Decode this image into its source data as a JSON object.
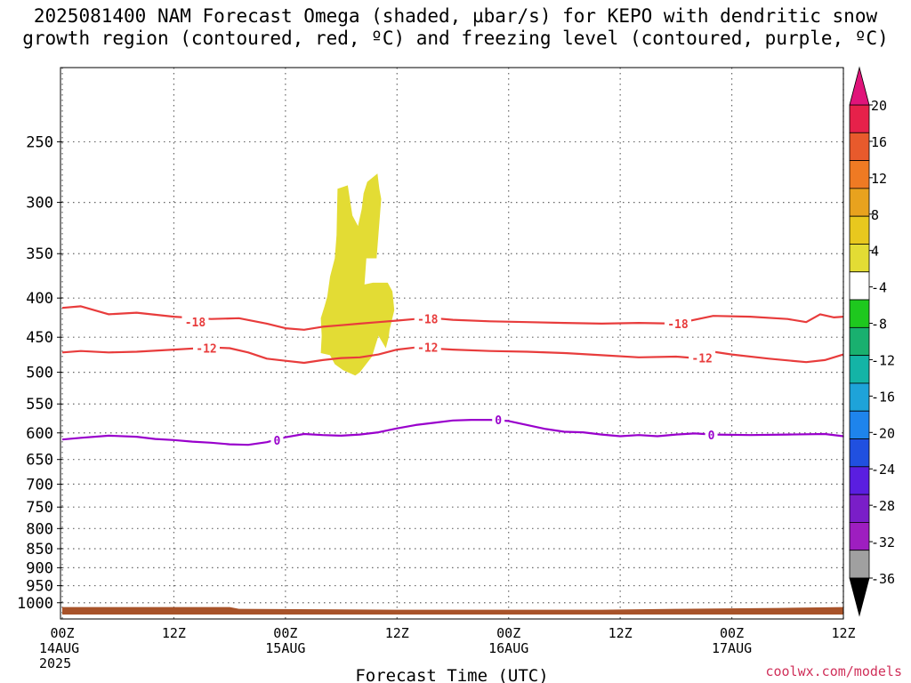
{
  "header": {
    "title_line1": "2025081400 NAM Forecast Omega (shaded, µbar/s) for KEPO with dendritic snow",
    "title_line2": "growth region (contoured, red, ºC) and freezing level (contoured, purple, ºC)"
  },
  "footer": {
    "credit": "coolwx.com/models"
  },
  "chart_data": {
    "type": "contour",
    "xlabel": "Forecast Time (UTC)",
    "ylabel": "",
    "x_unit": "forecast hour from 2025-08-14 00Z",
    "xlim": [
      0,
      84
    ],
    "ylim_hpa": [
      1050,
      200
    ],
    "y_scale": "log-pressure",
    "grid": true,
    "x_ticks": [
      {
        "hour": 0,
        "lines": [
          "00Z",
          "14AUG",
          "2025"
        ]
      },
      {
        "hour": 12,
        "lines": [
          "12Z"
        ]
      },
      {
        "hour": 24,
        "lines": [
          "00Z",
          "15AUG"
        ]
      },
      {
        "hour": 36,
        "lines": [
          "12Z"
        ]
      },
      {
        "hour": 48,
        "lines": [
          "00Z",
          "16AUG"
        ]
      },
      {
        "hour": 60,
        "lines": [
          "12Z"
        ]
      },
      {
        "hour": 72,
        "lines": [
          "00Z",
          "17AUG"
        ]
      },
      {
        "hour": 84,
        "lines": [
          "12Z"
        ]
      }
    ],
    "y_ticks": [
      "250",
      "300",
      "350",
      "400",
      "450",
      "500",
      "550",
      "600",
      "650",
      "700",
      "750",
      "800",
      "850",
      "900",
      "950",
      "1000"
    ],
    "contours": [
      {
        "label": "-18",
        "color": "#e83c3c",
        "label_positions": [
          [
            14.3,
            430
          ],
          [
            39.3,
            426
          ],
          [
            66.2,
            432
          ]
        ],
        "points": [
          [
            0,
            412
          ],
          [
            2,
            410
          ],
          [
            5,
            420
          ],
          [
            8,
            418
          ],
          [
            12,
            423
          ],
          [
            16,
            426
          ],
          [
            19,
            425
          ],
          [
            22,
            432
          ],
          [
            24,
            438
          ],
          [
            26,
            440
          ],
          [
            28,
            436
          ],
          [
            30,
            434
          ],
          [
            32,
            432
          ],
          [
            34,
            430
          ],
          [
            36,
            428
          ],
          [
            38,
            426
          ],
          [
            40,
            425
          ],
          [
            42,
            427
          ],
          [
            46,
            429
          ],
          [
            50,
            430
          ],
          [
            54,
            431
          ],
          [
            58,
            432
          ],
          [
            62,
            431
          ],
          [
            66,
            432
          ],
          [
            70,
            422
          ],
          [
            74,
            423
          ],
          [
            78,
            426
          ],
          [
            80,
            430
          ],
          [
            81.5,
            420
          ],
          [
            83,
            424
          ],
          [
            84,
            423
          ]
        ]
      },
      {
        "label": "-12",
        "color": "#e83c3c",
        "label_positions": [
          [
            15.5,
            465
          ],
          [
            39.3,
            464
          ],
          [
            68.8,
            479
          ]
        ],
        "points": [
          [
            0,
            471
          ],
          [
            2,
            469
          ],
          [
            5,
            471
          ],
          [
            8,
            470
          ],
          [
            12,
            467
          ],
          [
            16,
            464
          ],
          [
            18,
            465
          ],
          [
            20,
            471
          ],
          [
            22,
            480
          ],
          [
            24,
            483
          ],
          [
            26,
            486
          ],
          [
            28,
            482
          ],
          [
            30,
            479
          ],
          [
            32,
            478
          ],
          [
            34,
            474
          ],
          [
            36,
            467
          ],
          [
            38,
            464
          ],
          [
            42,
            467
          ],
          [
            46,
            469
          ],
          [
            50,
            470
          ],
          [
            54,
            472
          ],
          [
            58,
            475
          ],
          [
            62,
            478
          ],
          [
            66,
            477
          ],
          [
            68,
            479
          ],
          [
            70,
            470
          ],
          [
            72,
            474
          ],
          [
            76,
            480
          ],
          [
            80,
            485
          ],
          [
            82,
            482
          ],
          [
            84,
            474
          ]
        ]
      },
      {
        "label": "0",
        "color": "#9900cc",
        "label_positions": [
          [
            23.1,
            613
          ],
          [
            46.9,
            577
          ],
          [
            69.8,
            604
          ]
        ],
        "points": [
          [
            0,
            612
          ],
          [
            2,
            609
          ],
          [
            5,
            605
          ],
          [
            8,
            607
          ],
          [
            10,
            611
          ],
          [
            12,
            613
          ],
          [
            14,
            616
          ],
          [
            16,
            618
          ],
          [
            18,
            621
          ],
          [
            20,
            622
          ],
          [
            22,
            617
          ],
          [
            24,
            608
          ],
          [
            26,
            602
          ],
          [
            28,
            604
          ],
          [
            30,
            605
          ],
          [
            32,
            603
          ],
          [
            34,
            599
          ],
          [
            36,
            592
          ],
          [
            38,
            586
          ],
          [
            40,
            582
          ],
          [
            42,
            578
          ],
          [
            44,
            577
          ],
          [
            46,
            577
          ],
          [
            48,
            579
          ],
          [
            50,
            586
          ],
          [
            52,
            593
          ],
          [
            54,
            598
          ],
          [
            56,
            599
          ],
          [
            58,
            603
          ],
          [
            60,
            606
          ],
          [
            62,
            604
          ],
          [
            64,
            606
          ],
          [
            66,
            603
          ],
          [
            68,
            601
          ],
          [
            70,
            603
          ],
          [
            74,
            604
          ],
          [
            78,
            603
          ],
          [
            82,
            602
          ],
          [
            84,
            606
          ]
        ]
      }
    ],
    "shaded_regions": [
      {
        "color": "#e3dc34",
        "min_value": 4,
        "max_value": 8,
        "points": [
          [
            29.6,
            288
          ],
          [
            30.7,
            285
          ],
          [
            31.2,
            312
          ],
          [
            31.8,
            322
          ],
          [
            32.2,
            306
          ],
          [
            32.4,
            292
          ],
          [
            32.8,
            282
          ],
          [
            33.9,
            275
          ],
          [
            34.1,
            288
          ],
          [
            34.3,
            297
          ],
          [
            33.8,
            355
          ],
          [
            32.7,
            355
          ],
          [
            32.5,
            384
          ],
          [
            33.4,
            382
          ],
          [
            35.0,
            382
          ],
          [
            35.5,
            392
          ],
          [
            35.7,
            415
          ],
          [
            35.2,
            440
          ],
          [
            35.1,
            450
          ],
          [
            34.8,
            465
          ],
          [
            34.0,
            448
          ],
          [
            33.3,
            477
          ],
          [
            32.0,
            500
          ],
          [
            31.5,
            505
          ],
          [
            30.2,
            497
          ],
          [
            29.3,
            488
          ],
          [
            28.8,
            475
          ],
          [
            27.8,
            472
          ],
          [
            27.9,
            448
          ],
          [
            27.8,
            425
          ],
          [
            28.2,
            410
          ],
          [
            28.5,
            398
          ],
          [
            28.8,
            375
          ],
          [
            29.3,
            355
          ],
          [
            29.5,
            331
          ]
        ]
      }
    ],
    "colorbar": {
      "labels": [
        "20",
        "16",
        "12",
        "8",
        "4",
        "-4",
        "-8",
        "-12",
        "-16",
        "-20",
        "-24",
        "-28",
        "-32",
        "-36"
      ],
      "bands": [
        "#e6214a",
        "#e85a2c",
        "#ef7a23",
        "#e8a21e",
        "#e8c81e",
        "#e3dc34",
        "#ffffff",
        "#1ec81e",
        "#19b06f",
        "#14b4a6",
        "#1ea3d9",
        "#1e84ec",
        "#2050e0",
        "#5a1ee0",
        "#7a1ec8",
        "#9e1ec0",
        "#a0a0a0"
      ],
      "top_arrow": "#e0147a",
      "bottom_arrow": "#000000"
    },
    "ground_color": "#a8532a"
  }
}
